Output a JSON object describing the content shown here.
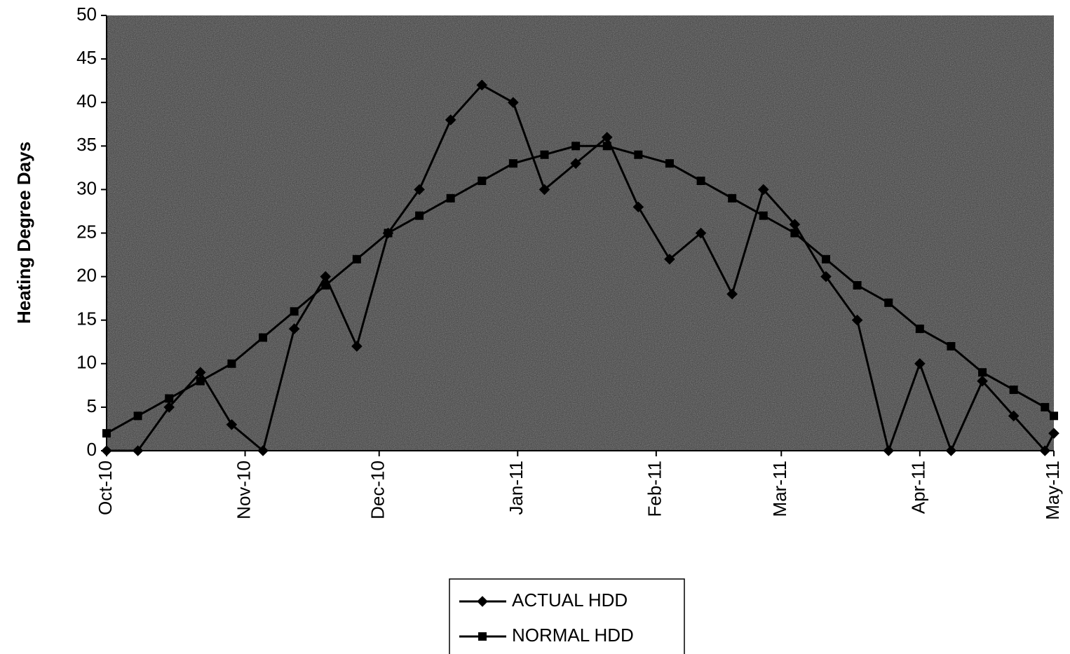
{
  "chart_data": {
    "type": "line",
    "y_label": "Heating Degree Days",
    "x": [
      0,
      7,
      14,
      21,
      28,
      35,
      42,
      49,
      56,
      63,
      70,
      77,
      84,
      91,
      98,
      105,
      112,
      119,
      126,
      133,
      140,
      147,
      154,
      161,
      168,
      175,
      182,
      189,
      196,
      203,
      210,
      212
    ],
    "xlim": [
      0,
      212
    ],
    "xticks": [
      {
        "value": 0,
        "label": "Oct-10"
      },
      {
        "value": 31,
        "label": "Nov-10"
      },
      {
        "value": 61,
        "label": "Dec-10"
      },
      {
        "value": 92,
        "label": "Jan-11"
      },
      {
        "value": 123,
        "label": "Feb-11"
      },
      {
        "value": 151,
        "label": "Mar-11"
      },
      {
        "value": 182,
        "label": "Apr-11"
      },
      {
        "value": 212,
        "label": "May-11"
      }
    ],
    "ylim": [
      0,
      50
    ],
    "yticks": [
      0,
      5,
      10,
      15,
      20,
      25,
      30,
      35,
      40,
      45,
      50
    ],
    "legend": "bottom",
    "series": [
      {
        "name": "ACTUAL HDD",
        "color": "#000000",
        "marker": "diamond",
        "values": [
          0,
          0,
          5,
          9,
          3,
          0,
          14,
          20,
          12,
          25,
          30,
          38,
          42,
          40,
          30,
          33,
          36,
          28,
          22,
          25,
          18,
          30,
          26,
          20,
          15,
          0,
          10,
          0,
          8,
          4,
          0,
          2
        ]
      },
      {
        "name": "NORMAL HDD",
        "color": "#000000",
        "marker": "square",
        "values": [
          2,
          4,
          6,
          8,
          10,
          13,
          16,
          19,
          22,
          25,
          27,
          29,
          31,
          33,
          34,
          35,
          35,
          34,
          33,
          31,
          29,
          27,
          25,
          22,
          19,
          17,
          14,
          12,
          9,
          7,
          5,
          4
        ]
      }
    ]
  }
}
